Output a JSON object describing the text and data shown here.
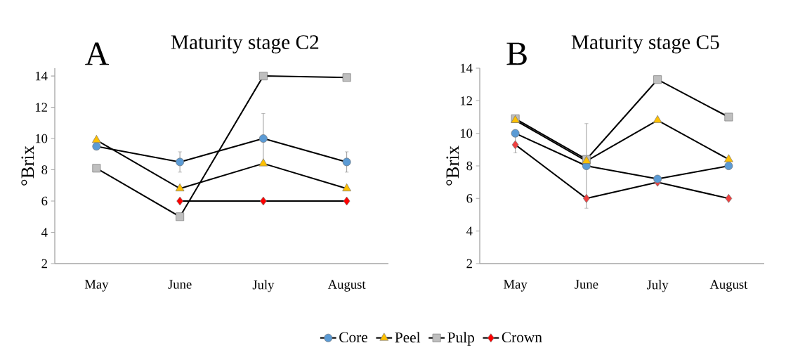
{
  "chart_data": [
    {
      "type": "line",
      "title": "Maturity stage C2",
      "annotations": [
        "A"
      ],
      "ylabel": "°Brix",
      "categories": [
        "May",
        "June",
        "July",
        "August"
      ],
      "ylim": [
        2,
        14.5
      ],
      "yticks": [
        2,
        4,
        6,
        8,
        10,
        12,
        14
      ],
      "legend": "bottom",
      "line_style": "solid",
      "series": [
        {
          "name": "Core",
          "color": "#5b9bd5",
          "marker": "circle",
          "values": [
            9.5,
            8.5,
            10.0,
            8.5
          ],
          "errors": [
            0.2,
            0.65,
            1.6,
            0.65
          ]
        },
        {
          "name": "Peel",
          "color": "#ffc000",
          "marker": "triangle",
          "values": [
            9.9,
            6.8,
            8.4,
            6.8
          ]
        },
        {
          "name": "Pulp",
          "color": "#bfbfbf",
          "marker": "square",
          "values": [
            8.1,
            5.0,
            14.0,
            13.9
          ]
        },
        {
          "name": "Crown",
          "color": "#ff0000",
          "marker": "diamond",
          "values": [
            null,
            6.0,
            6.0,
            6.0
          ]
        }
      ]
    },
    {
      "type": "line",
      "title": "Maturity stage C5",
      "annotations": [
        "B"
      ],
      "ylabel": "°Brix",
      "categories": [
        "May",
        "June",
        "July",
        "August"
      ],
      "ylim": [
        2,
        14
      ],
      "yticks": [
        2,
        4,
        6,
        8,
        10,
        12,
        14
      ],
      "line_style": "solid",
      "series": [
        {
          "color": "#5b9bd5",
          "marker": "circle",
          "values": [
            10.0,
            8.0,
            7.2,
            8.0
          ],
          "errors": [
            null,
            2.6,
            null,
            null
          ]
        },
        {
          "color": "#ffc000",
          "marker": "triangle",
          "values": [
            10.8,
            8.3,
            10.8,
            8.4
          ]
        },
        {
          "color": "#bfbfbf",
          "marker": "square",
          "values": [
            10.9,
            8.4,
            13.3,
            11.0
          ]
        },
        {
          "color": "#f04040",
          "marker": "diamond",
          "values": [
            9.3,
            6.0,
            7.0,
            6.0
          ],
          "errors": [
            0.5,
            null,
            null,
            null
          ]
        }
      ]
    }
  ]
}
